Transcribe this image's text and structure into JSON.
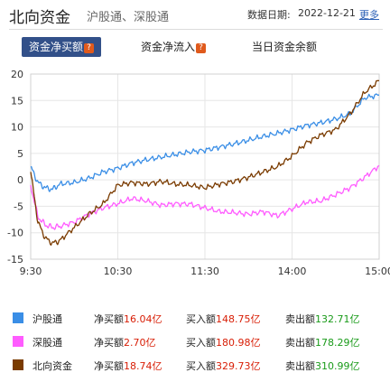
{
  "header": {
    "title": "北向资金",
    "subtitle": "沪股通、深股通",
    "date_label": "数据日期:",
    "date": "2022-12-21",
    "more": "更多"
  },
  "tabs": [
    {
      "label": "资金净买额",
      "active": true
    },
    {
      "label": "资金净流入",
      "active": false
    },
    {
      "label": "当日资金余额",
      "active": false
    }
  ],
  "chart_data": {
    "type": "line",
    "x_ticks": [
      "9:30",
      "10:30",
      "11:30",
      "14:00",
      "15:00"
    ],
    "y_ticks": [
      "20",
      "15",
      "10",
      "5",
      "0",
      "-5",
      "-10",
      "-15"
    ],
    "ylim": [
      -15,
      20
    ],
    "grid": true,
    "series": [
      {
        "name": "沪股通",
        "color": "#3a8ee6",
        "x": [
          0,
          5,
          10,
          15,
          20,
          30,
          40,
          50,
          60,
          70,
          80,
          90,
          100,
          110,
          120,
          130,
          140,
          150,
          160,
          170,
          180,
          190,
          200,
          210,
          220,
          230,
          240
        ],
        "values": [
          2.5,
          -0.5,
          -1.5,
          -1.8,
          -0.8,
          -0.5,
          0.3,
          1.5,
          2.2,
          3.2,
          3.8,
          4.3,
          4.8,
          5.3,
          5.6,
          6.2,
          6.8,
          7.5,
          8.2,
          8.8,
          9.5,
          10.3,
          10.8,
          11.5,
          12.5,
          15.5,
          16.04
        ]
      },
      {
        "name": "深股通",
        "color": "#ff5cff",
        "x": [
          0,
          5,
          10,
          15,
          20,
          30,
          40,
          50,
          60,
          70,
          80,
          90,
          100,
          110,
          120,
          130,
          140,
          150,
          160,
          170,
          180,
          190,
          200,
          210,
          220,
          230,
          240
        ],
        "values": [
          -1.0,
          -7.0,
          -8.5,
          -9.0,
          -8.8,
          -8.0,
          -6.5,
          -5.3,
          -4.5,
          -3.5,
          -4.0,
          -4.8,
          -4.5,
          -4.6,
          -5.3,
          -6.0,
          -6.2,
          -6.5,
          -6.0,
          -6.8,
          -5.5,
          -4.2,
          -4.0,
          -2.8,
          -1.5,
          0.5,
          2.7
        ]
      },
      {
        "name": "北向资金",
        "color": "#7a3b00",
        "x": [
          0,
          5,
          10,
          15,
          20,
          30,
          40,
          50,
          60,
          70,
          80,
          90,
          100,
          110,
          120,
          130,
          140,
          150,
          160,
          170,
          180,
          190,
          200,
          210,
          220,
          230,
          240
        ],
        "values": [
          1.5,
          -8.0,
          -11.0,
          -12.0,
          -11.5,
          -9.0,
          -6.5,
          -4.5,
          -1.0,
          -0.5,
          -0.8,
          -0.3,
          -0.8,
          -1.0,
          -1.5,
          -0.8,
          -0.3,
          0.5,
          1.5,
          2.5,
          4.5,
          7.0,
          8.5,
          9.5,
          12.5,
          16.5,
          18.74
        ]
      }
    ]
  },
  "legend": [
    {
      "name": "沪股通",
      "color": "#3a8ee6",
      "net_label": "净买额",
      "net": "16.04亿",
      "buy_label": "买入额",
      "buy": "148.75亿",
      "sell_label": "卖出额",
      "sell": "132.71亿"
    },
    {
      "name": "深股通",
      "color": "#ff5cff",
      "net_label": "净买额",
      "net": "2.70亿",
      "buy_label": "买入额",
      "buy": "180.98亿",
      "sell_label": "卖出额",
      "sell": "178.29亿"
    },
    {
      "name": "北向资金",
      "color": "#7a3b00",
      "net_label": "净买额",
      "net": "18.74亿",
      "buy_label": "买入额",
      "buy": "329.73亿",
      "sell_label": "卖出额",
      "sell": "310.99亿"
    }
  ]
}
